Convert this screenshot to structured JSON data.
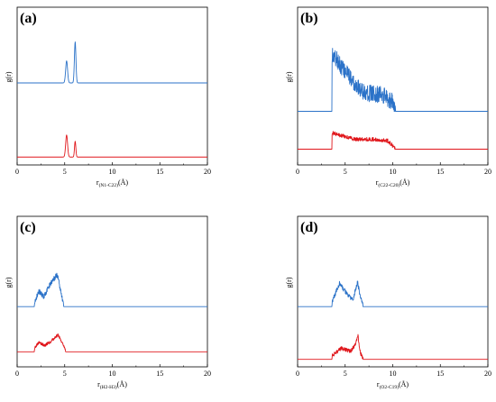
{
  "colors": {
    "blue": "#2b72c8",
    "red": "#e0161b",
    "axis": "#000000"
  },
  "chart_data": [
    {
      "type": "line",
      "panel_label": "(a)",
      "ylabel": "g(r)",
      "xlabel": {
        "main": "r",
        "sub": "(N1-C22)",
        "unit": "(Å)"
      },
      "xlim": [
        0,
        20
      ],
      "xticks": [
        "0",
        "5",
        "10",
        "15",
        "20"
      ],
      "series": [
        {
          "color": "blue",
          "baseline": 0.52,
          "peaks": [
            [
              5.2,
              0.28,
              0.1
            ],
            [
              6.1,
              0.52,
              0.08
            ]
          ],
          "noise": 0.0,
          "start": 0,
          "end": 20
        },
        {
          "color": "red",
          "baseline": 0.05,
          "peaks": [
            [
              5.2,
              0.28,
              0.1
            ],
            [
              6.1,
              0.2,
              0.07
            ]
          ],
          "noise": 0.0,
          "start": 0,
          "end": 20
        }
      ]
    },
    {
      "type": "line",
      "panel_label": "(b)",
      "ylabel": "g(r)",
      "xlabel": {
        "main": "r",
        "sub": "(C22-C20)",
        "unit": "(Å)"
      },
      "xlim": [
        0,
        20
      ],
      "xticks": [
        "0",
        "5",
        "10",
        "15",
        "20"
      ],
      "series": [
        {
          "color": "blue",
          "baseline": 0.34,
          "band": [
            3.6,
            10.3
          ],
          "level": [
            [
              3.6,
              0.7
            ],
            [
              4.2,
              0.62
            ],
            [
              5.5,
              0.4
            ],
            [
              7.0,
              0.22
            ],
            [
              9.0,
              0.18
            ],
            [
              10.0,
              0.1
            ],
            [
              10.3,
              0.0
            ]
          ],
          "noise": 0.22,
          "start": 0,
          "end": 20
        },
        {
          "color": "red",
          "baseline": 0.1,
          "band": [
            3.6,
            10.3
          ],
          "level": [
            [
              3.6,
              0.2
            ],
            [
              4.5,
              0.17
            ],
            [
              6.0,
              0.12
            ],
            [
              8.0,
              0.12
            ],
            [
              9.5,
              0.1
            ],
            [
              10.3,
              0.0
            ]
          ],
          "noise": 0.05,
          "start": 0,
          "end": 20
        }
      ]
    },
    {
      "type": "line",
      "panel_label": "(c)",
      "ylabel": "g(r)",
      "xlabel": {
        "main": "r",
        "sub": "(H2-H3)",
        "unit": "(Å)"
      },
      "xlim": [
        0,
        20
      ],
      "xticks": [
        "0",
        "5",
        "10",
        "15",
        "20"
      ],
      "series": [
        {
          "color": "blue",
          "baseline": 0.4,
          "band": [
            1.8,
            4.9
          ],
          "level": [
            [
              1.8,
              0.05
            ],
            [
              2.3,
              0.2
            ],
            [
              2.8,
              0.12
            ],
            [
              3.5,
              0.3
            ],
            [
              4.2,
              0.42
            ],
            [
              4.6,
              0.2
            ],
            [
              4.9,
              0.0
            ]
          ],
          "noise": 0.07,
          "start": 0,
          "end": 20
        },
        {
          "color": "red",
          "baseline": 0.1,
          "band": [
            1.8,
            5.1
          ],
          "level": [
            [
              1.8,
              0.04
            ],
            [
              2.3,
              0.12
            ],
            [
              2.9,
              0.08
            ],
            [
              3.6,
              0.14
            ],
            [
              4.3,
              0.22
            ],
            [
              4.8,
              0.1
            ],
            [
              5.1,
              0.0
            ]
          ],
          "noise": 0.04,
          "start": 0,
          "end": 20
        }
      ]
    },
    {
      "type": "line",
      "panel_label": "(d)",
      "ylabel": "g(r)",
      "xlabel": {
        "main": "r",
        "sub": "(O2-C19)",
        "unit": "(Å)"
      },
      "xlim": [
        0,
        20
      ],
      "xticks": [
        "0",
        "5",
        "10",
        "15",
        "20"
      ],
      "series": [
        {
          "color": "blue",
          "baseline": 0.4,
          "band": [
            3.6,
            6.9
          ],
          "level": [
            [
              3.6,
              0.05
            ],
            [
              4.4,
              0.3
            ],
            [
              5.2,
              0.16
            ],
            [
              5.8,
              0.08
            ],
            [
              6.3,
              0.32
            ],
            [
              6.6,
              0.12
            ],
            [
              6.9,
              0.0
            ]
          ],
          "noise": 0.06,
          "start": 0,
          "end": 20
        },
        {
          "color": "red",
          "baseline": 0.05,
          "band": [
            3.6,
            6.9
          ],
          "level": [
            [
              3.6,
              0.04
            ],
            [
              4.6,
              0.14
            ],
            [
              5.6,
              0.1
            ],
            [
              6.0,
              0.18
            ],
            [
              6.35,
              0.3
            ],
            [
              6.6,
              0.08
            ],
            [
              6.9,
              0.0
            ]
          ],
          "noise": 0.05,
          "start": 0,
          "end": 20
        }
      ]
    }
  ]
}
